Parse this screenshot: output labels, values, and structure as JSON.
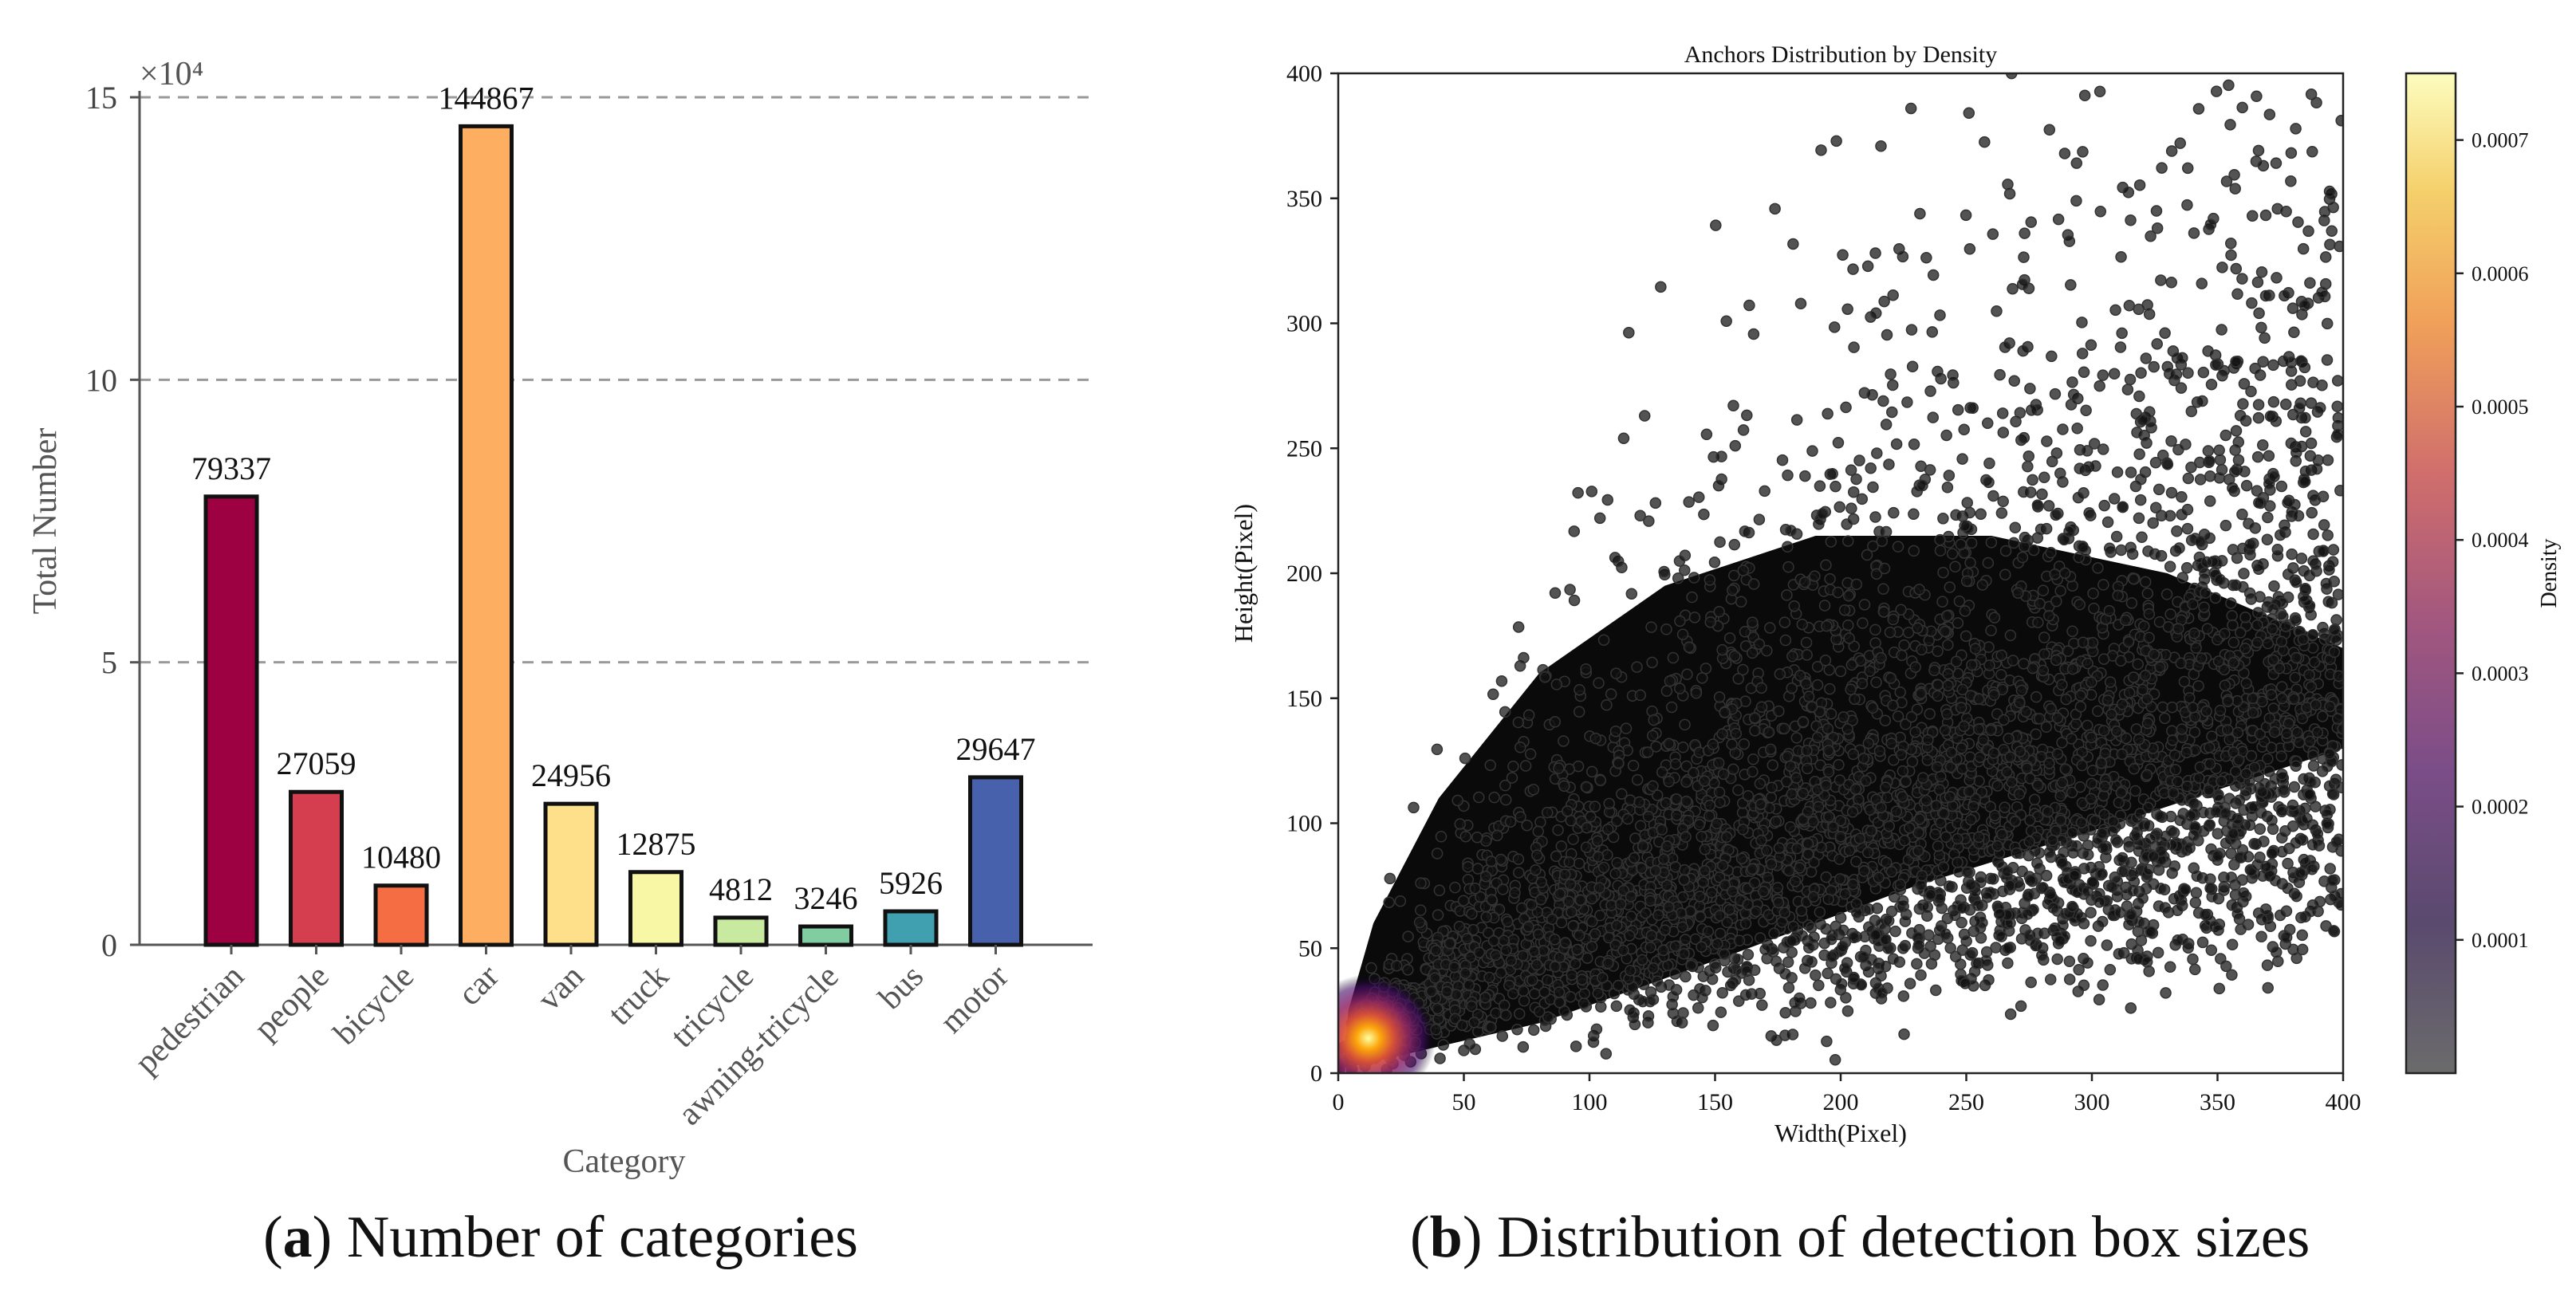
{
  "chart_data": [
    {
      "type": "bar",
      "title": "",
      "xlabel": "Category",
      "ylabel": "Total Number",
      "y_multiplier": "×10⁴",
      "ylim": [
        0,
        150000
      ],
      "yticks": [
        0,
        50000,
        100000,
        150000
      ],
      "ytick_labels": [
        "0",
        "5",
        "10",
        "15"
      ],
      "grid": "dashed horizontal",
      "categories": [
        "pedestrian",
        "people",
        "bicycle",
        "car",
        "van",
        "truck",
        "tricycle",
        "awning-tricycle",
        "bus",
        "motor"
      ],
      "values": [
        79337,
        27059,
        10480,
        144867,
        24956,
        12875,
        4812,
        3246,
        5926,
        29647
      ],
      "value_labels": [
        "79337",
        "27059",
        "10480",
        "144867",
        "24956",
        "12875",
        "4812",
        "3246",
        "5926",
        "29647"
      ],
      "colors": [
        "#9e0142",
        "#d53e4f",
        "#f46d43",
        "#fdae61",
        "#fee08b",
        "#f7f7a6",
        "#c7e9a0",
        "#7fcda0",
        "#41a0b0",
        "#4861ac"
      ]
    },
    {
      "type": "scatter",
      "title": "Anchors Distribution by Density",
      "xlabel": "Width(Pixel)",
      "ylabel": "Height(Pixel)",
      "xlim": [
        0,
        400
      ],
      "ylim": [
        0,
        400
      ],
      "xticks": [
        0,
        50,
        100,
        150,
        200,
        250,
        300,
        350,
        400
      ],
      "yticks": [
        0,
        50,
        100,
        150,
        200,
        250,
        300,
        350,
        400
      ],
      "density_peak": {
        "x": 12,
        "y": 14
      },
      "colorbar": {
        "label": "Density",
        "ticks": [
          "0.0001",
          "0.0002",
          "0.0003",
          "0.0004",
          "0.0005",
          "0.0006",
          "0.0007"
        ],
        "range": [
          0,
          0.00075
        ],
        "colormap": "inferno"
      }
    }
  ],
  "captions": {
    "a_label": "a",
    "a_text": "Number of categories",
    "b_label": "b",
    "b_text": "Distribution of detection box sizes"
  }
}
